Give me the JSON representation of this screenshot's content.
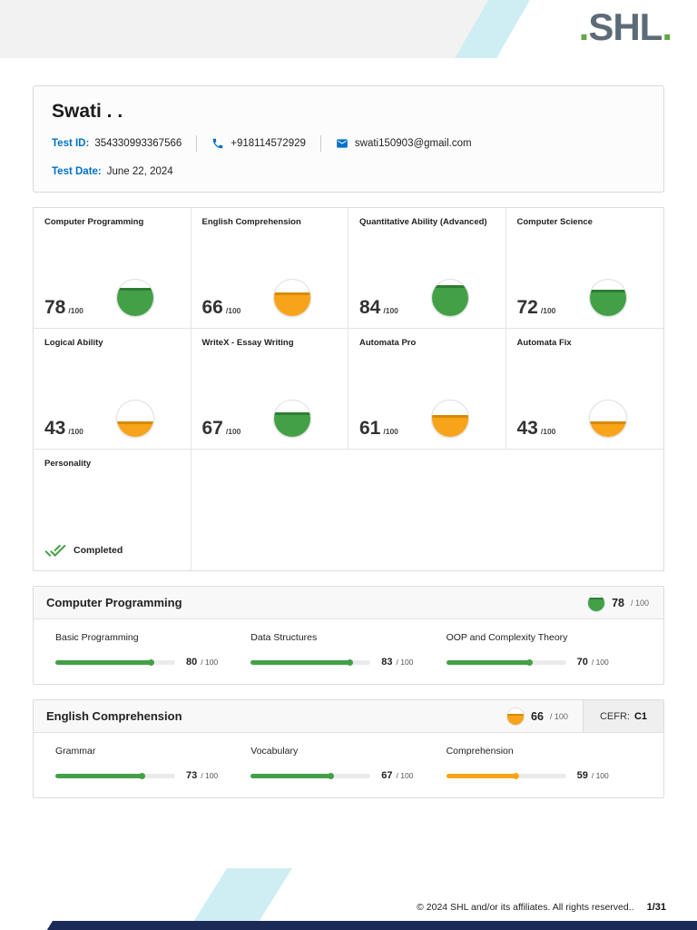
{
  "logo": {
    "dot_left": ".",
    "text": "SHL",
    "dot_right": "."
  },
  "candidate": {
    "name": "Swati . .",
    "test_id_label": "Test ID:",
    "test_id": "354330993367566",
    "phone": "+918114572929",
    "email": "swati150903@gmail.com",
    "test_date_label": "Test Date:",
    "test_date": "June 22, 2024"
  },
  "labels": {
    "tile_denom": "/100",
    "score_denom": "/ 100"
  },
  "tiles": [
    {
      "title": "Computer Programming",
      "score": 78,
      "max": 100,
      "color": "green"
    },
    {
      "title": "English Comprehension",
      "score": 66,
      "max": 100,
      "color": "orange"
    },
    {
      "title": "Quantitative Ability (Advanced)",
      "score": 84,
      "max": 100,
      "color": "green"
    },
    {
      "title": "Computer Science",
      "score": 72,
      "max": 100,
      "color": "green"
    },
    {
      "title": "Logical Ability",
      "score": 43,
      "max": 100,
      "color": "orange"
    },
    {
      "title": "WriteX - Essay Writing",
      "score": 67,
      "max": 100,
      "color": "green"
    },
    {
      "title": "Automata Pro",
      "score": 61,
      "max": 100,
      "color": "orange"
    },
    {
      "title": "Automata Fix",
      "score": 43,
      "max": 100,
      "color": "orange"
    }
  ],
  "personality": {
    "title": "Personality",
    "status": "Completed"
  },
  "sections": [
    {
      "title": "Computer Programming",
      "score": 78,
      "max": 100,
      "color": "green",
      "subscores": [
        {
          "label": "Basic Programming",
          "score": 80,
          "max": 100,
          "color": "green"
        },
        {
          "label": "Data Structures",
          "score": 83,
          "max": 100,
          "color": "green"
        },
        {
          "label": "OOP and Complexity Theory",
          "score": 70,
          "max": 100,
          "color": "green"
        }
      ]
    },
    {
      "title": "English Comprehension",
      "score": 66,
      "max": 100,
      "color": "orange",
      "cefr_label": "CEFR:",
      "cefr": "C1",
      "subscores": [
        {
          "label": "Grammar",
          "score": 73,
          "max": 100,
          "color": "green"
        },
        {
          "label": "Vocabulary",
          "score": 67,
          "max": 100,
          "color": "green"
        },
        {
          "label": "Comprehension",
          "score": 59,
          "max": 100,
          "color": "orange"
        }
      ]
    }
  ],
  "footer": {
    "copyright": "© 2024 SHL and/or its affiliates. All rights reserved..",
    "page": "1/31"
  },
  "colors": {
    "green": "#43a047",
    "green_dark": "#2e7d32",
    "orange": "#f8a41b",
    "orange_dark": "#d88a00",
    "blue": "#0072c6",
    "teal": "#cfeef3",
    "navy": "#1b2a56"
  }
}
